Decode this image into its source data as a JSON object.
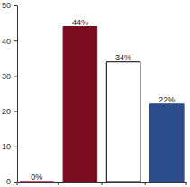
{
  "chart_data": {
    "type": "bar",
    "categories": [
      null,
      null,
      null,
      null
    ],
    "values": [
      0,
      44,
      34,
      22
    ],
    "value_labels": [
      "0%",
      "44%",
      "34%",
      "22%"
    ],
    "colors": [
      "#b3192c",
      "#7a0c1e",
      "#ffffff",
      "#2c4d8c"
    ],
    "ylim": [
      0,
      50
    ],
    "yticks": [
      0,
      10,
      20,
      30,
      40,
      50
    ],
    "data_labels": true
  }
}
